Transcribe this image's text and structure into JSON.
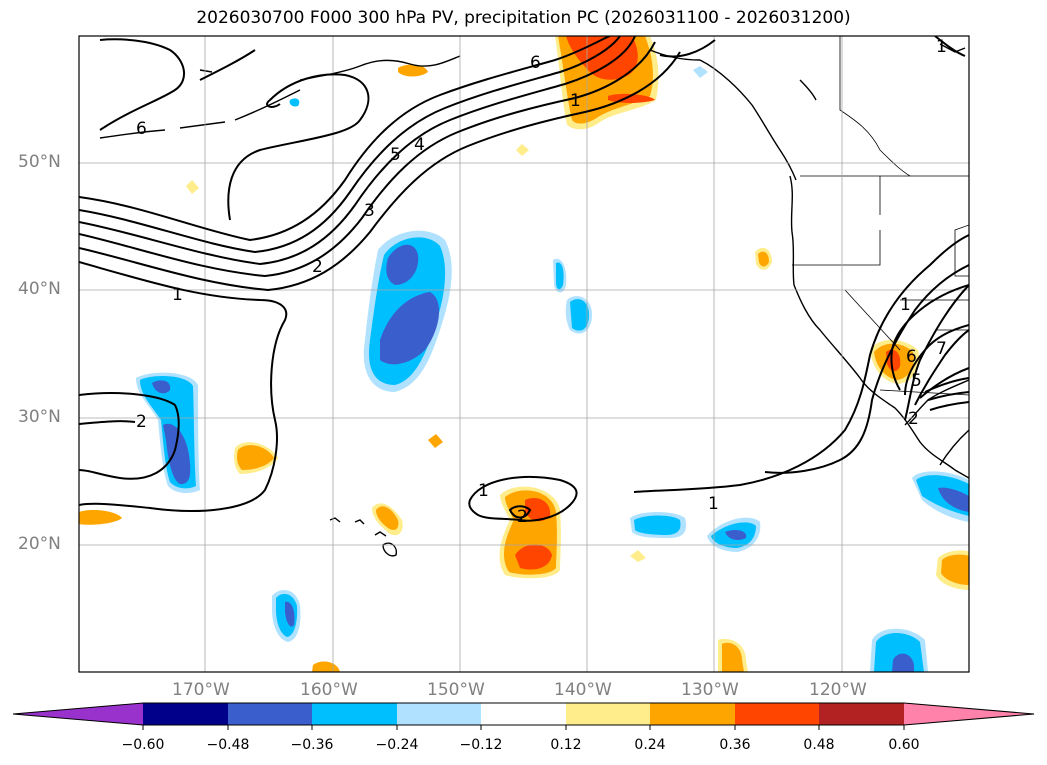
{
  "title": "2026030700 F000 300 hPa PV, precipitation PC (2026031100 - 2026031200)",
  "map": {
    "lon_range": [
      -180,
      -110
    ],
    "lat_range": [
      10,
      60
    ],
    "lat_labels": [
      "50°N",
      "40°N",
      "30°N",
      "20°N"
    ],
    "lon_labels": [
      "170°W",
      "160°W",
      "150°W",
      "140°W",
      "130°W",
      "120°W"
    ],
    "contour_labels": [
      "6",
      "6",
      "5",
      "4",
      "3",
      "2",
      "1",
      "1",
      "2",
      "1",
      "2",
      "1",
      "1",
      "7",
      "6",
      "5",
      "2",
      "1"
    ]
  },
  "colorbar": {
    "ticks": [
      "−0.60",
      "−0.48",
      "−0.36",
      "−0.24",
      "−0.12",
      "0.12",
      "0.24",
      "0.36",
      "0.48",
      "0.60"
    ],
    "colors": [
      "#9932cc",
      "#00008b",
      "#3a5fcd",
      "#00bfff",
      "#b0e2ff",
      "#ffffff",
      "#ffec8b",
      "#ffa500",
      "#ff4500",
      "#b22222",
      "#ff82ab"
    ]
  }
}
